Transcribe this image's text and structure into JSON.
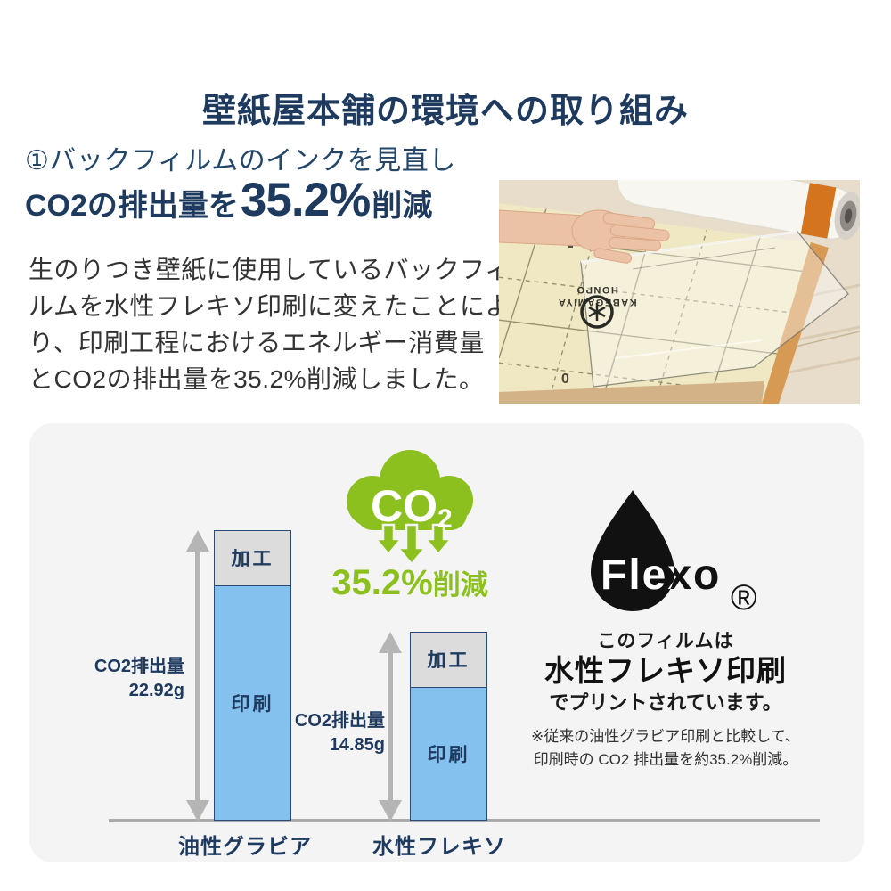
{
  "title": "壁紙屋本舗の環境への取り組み",
  "intro": {
    "heading": "①バックフィルムのインクを見直し",
    "result_prefix": "CO2の排出量を",
    "result_value": "35.2%",
    "result_suffix": "削減",
    "body_lines": [
      "生のりつき壁紙に使用しているバックフィ",
      "ルムを水性フレキソ印刷に変えたことによ",
      "り、印刷工程におけるエネルギー消費量",
      "とCO2の排出量を35.2%削減しました。"
    ]
  },
  "photo": {
    "film_brand_line1": "KABEGAMIYA",
    "film_brand_line2": "HONPO",
    "ruler_mark": "0"
  },
  "chart_data": {
    "type": "bar",
    "categories": [
      "油性グラビア",
      "水性フレキソ"
    ],
    "series": [
      {
        "name": "加工",
        "values": [
          4.3,
          4.35
        ],
        "color": "#dcdcdd"
      },
      {
        "name": "印刷",
        "values": [
          18.62,
          10.5
        ],
        "color": "#85c1ee"
      }
    ],
    "totals": [
      22.92,
      14.85
    ],
    "annotations": [
      {
        "label": "CO2排出量",
        "value": "22.92g"
      },
      {
        "label": "CO2排出量",
        "value": "14.85g"
      }
    ],
    "unit": "g",
    "ylim": [
      0,
      24
    ],
    "grid": false,
    "legend_position": "none"
  },
  "reduction_badge": {
    "gas": "CO",
    "gas_sub": "2",
    "value": "35.2%",
    "suffix": "削減",
    "color": "#8cc01e"
  },
  "flexo": {
    "logo_text": "Flexo",
    "registered_symbol": "®",
    "line1": "このフィルムは",
    "line2": "水性フレキソ印刷",
    "line3": "でプリントされています。",
    "note1": "※従来の油性グラビア印刷と比較して、",
    "note2": "印刷時の CO2 排出量を約35.2%削減。"
  },
  "colors": {
    "navy": "#1e3a5f",
    "green": "#8cc01e",
    "bar_blue": "#85c1ee",
    "bar_gray": "#dcdcdd",
    "bar_border": "#2b4a73",
    "axis_gray": "#ababab",
    "panel_bg": "#f4f4f5",
    "body_text": "#333333"
  }
}
